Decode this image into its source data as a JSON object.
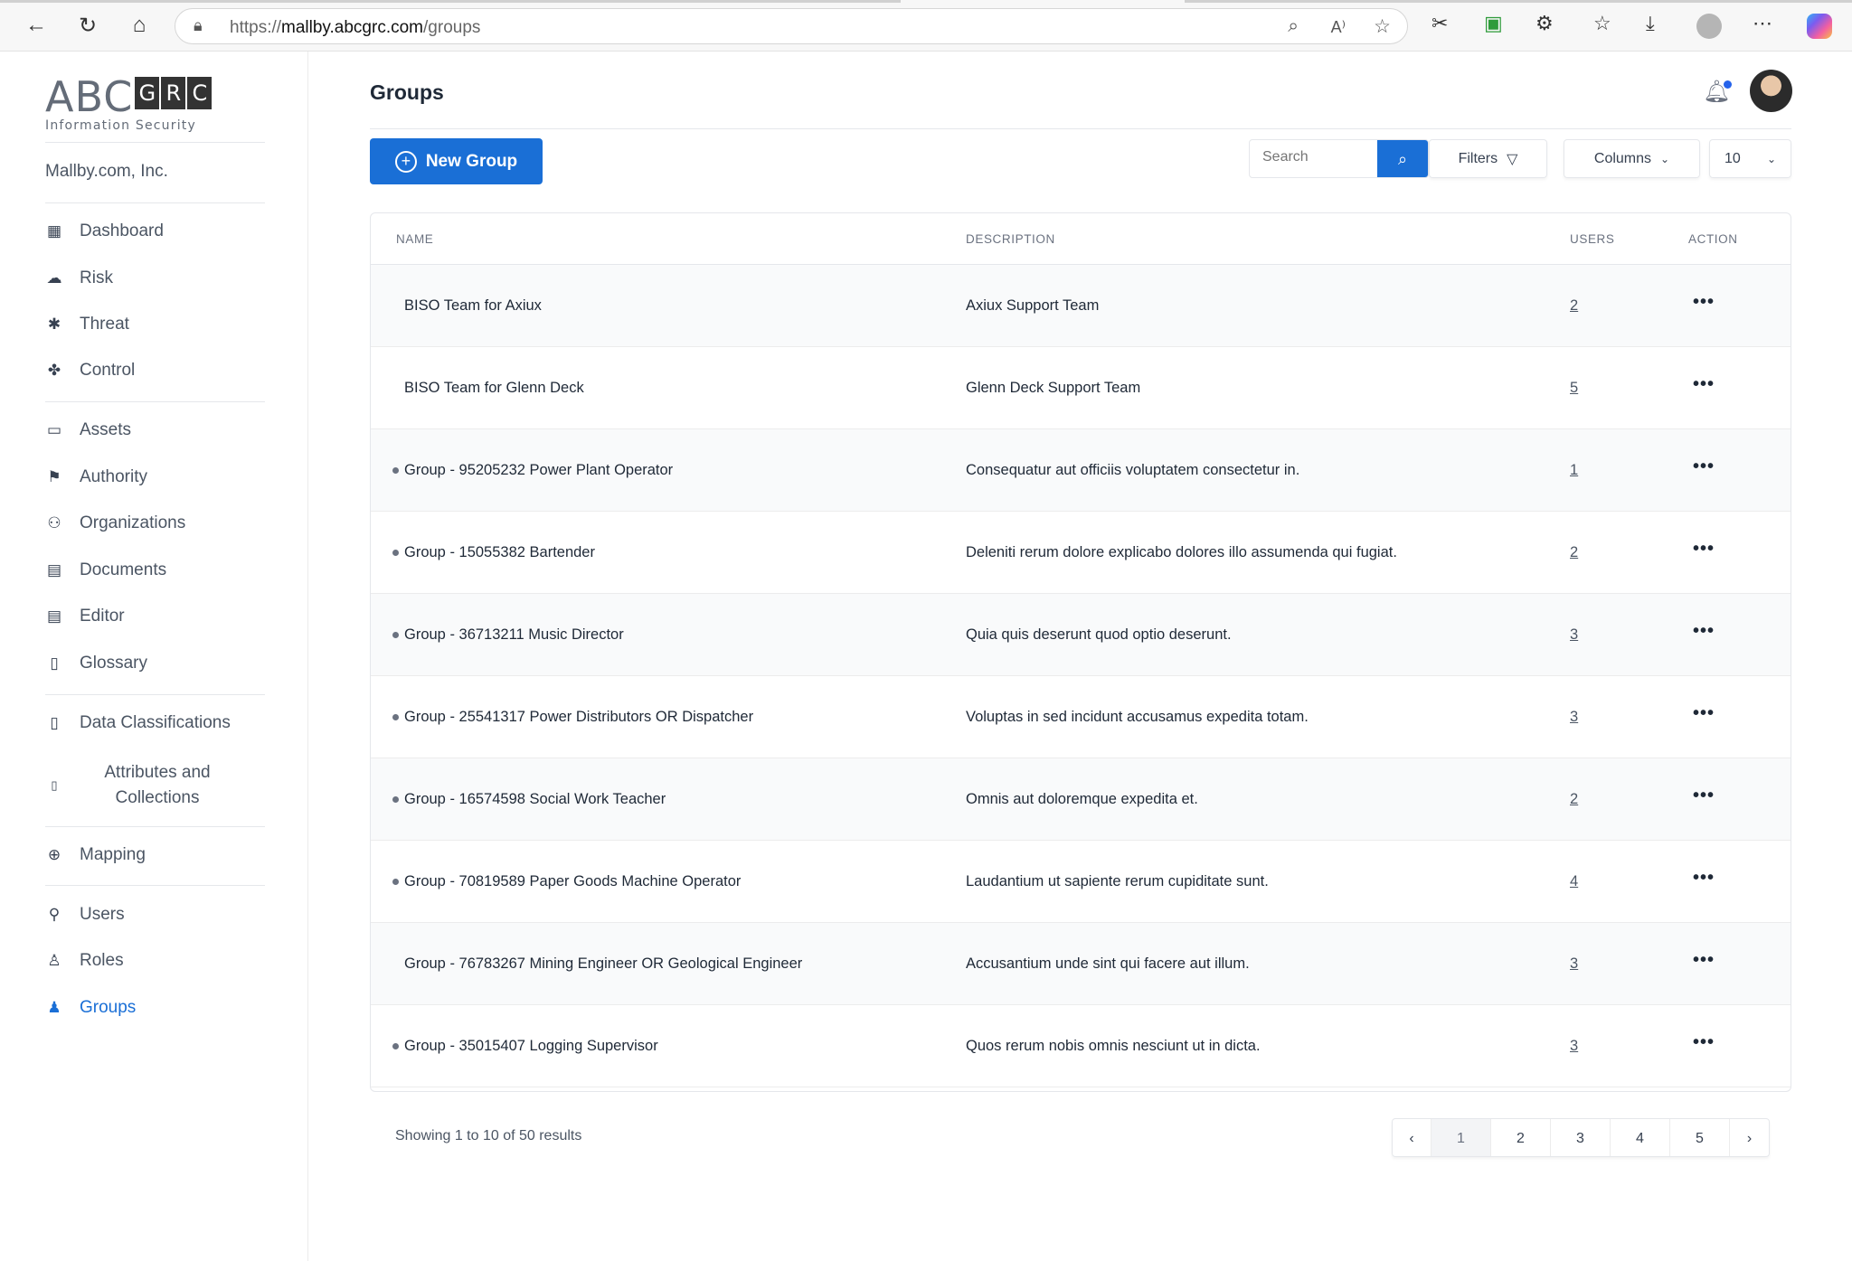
{
  "browser": {
    "url_prefix": "https://",
    "url_host": "mallby.abcgrc.com",
    "url_path": "/groups"
  },
  "logo": {
    "abc": "ABC",
    "grc": [
      "G",
      "R",
      "C"
    ],
    "tagline": "Information Security"
  },
  "sidebar": {
    "org": "Mallby.com, Inc.",
    "items": [
      {
        "label": "Dashboard",
        "icon": "dashboard-icon"
      },
      {
        "label": "Risk",
        "icon": "cloud-alert-icon"
      },
      {
        "label": "Threat",
        "icon": "bug-icon"
      },
      {
        "label": "Control",
        "icon": "puzzle-icon"
      },
      {
        "label": "Assets",
        "icon": "box-icon"
      },
      {
        "label": "Authority",
        "icon": "flag-icon"
      },
      {
        "label": "Organizations",
        "icon": "org-chart-icon"
      },
      {
        "label": "Documents",
        "icon": "document-icon"
      },
      {
        "label": "Editor",
        "icon": "editor-icon"
      },
      {
        "label": "Glossary",
        "icon": "book-icon"
      },
      {
        "label": "Data Classifications",
        "icon": "book-icon"
      },
      {
        "label": "Attributes and Collections",
        "icon": "book-icon"
      },
      {
        "label": "Mapping",
        "icon": "plus-circle-icon"
      },
      {
        "label": "Users",
        "icon": "user-plus-icon"
      },
      {
        "label": "Roles",
        "icon": "person-icon"
      },
      {
        "label": "Groups",
        "icon": "person-icon",
        "active": true
      }
    ]
  },
  "header": {
    "title": "Groups"
  },
  "toolbar": {
    "new_group": "New Group",
    "search_placeholder": "Search",
    "filters": "Filters",
    "columns": "Columns",
    "page_size": "10"
  },
  "table": {
    "columns": [
      "NAME",
      "DESCRIPTION",
      "USERS",
      "ACTION"
    ],
    "rows": [
      {
        "name": "BISO Team for Axiux",
        "description": "Axiux Support Team",
        "users": "2",
        "dot": false
      },
      {
        "name": "BISO Team for Glenn Deck",
        "description": "Glenn Deck Support Team",
        "users": "5",
        "dot": false
      },
      {
        "name": "Group - 95205232 Power Plant Operator",
        "description": "Consequatur aut officiis voluptatem consectetur in.",
        "users": "1",
        "dot": true
      },
      {
        "name": "Group - 15055382 Bartender",
        "description": "Deleniti rerum dolore explicabo dolores illo assumenda qui fugiat.",
        "users": "2",
        "dot": true
      },
      {
        "name": "Group - 36713211 Music Director",
        "description": "Quia quis deserunt quod optio deserunt.",
        "users": "3",
        "dot": true
      },
      {
        "name": "Group - 25541317 Power Distributors OR Dispatcher",
        "description": "Voluptas in sed incidunt accusamus expedita totam.",
        "users": "3",
        "dot": true
      },
      {
        "name": "Group - 16574598 Social Work Teacher",
        "description": "Omnis aut doloremque expedita et.",
        "users": "2",
        "dot": true
      },
      {
        "name": "Group - 70819589 Paper Goods Machine Operator",
        "description": "Laudantium ut sapiente rerum cupiditate sunt.",
        "users": "4",
        "dot": true
      },
      {
        "name": "Group - 76783267 Mining Engineer OR Geological Engineer",
        "description": "Accusantium unde sint qui facere aut illum.",
        "users": "3",
        "dot": false
      },
      {
        "name": "Group - 35015407 Logging Supervisor",
        "description": "Quos rerum nobis omnis nesciunt ut in dicta.",
        "users": "3",
        "dot": true
      }
    ],
    "action_label": "•••"
  },
  "pagination": {
    "summary": "Showing 1 to 10 of 50 results",
    "pages": [
      "1",
      "2",
      "3",
      "4",
      "5"
    ],
    "current": "1",
    "prev": "‹",
    "next": "›"
  },
  "colors": {
    "accent": "#1a6fd6",
    "notification_dot": "#2563eb"
  }
}
